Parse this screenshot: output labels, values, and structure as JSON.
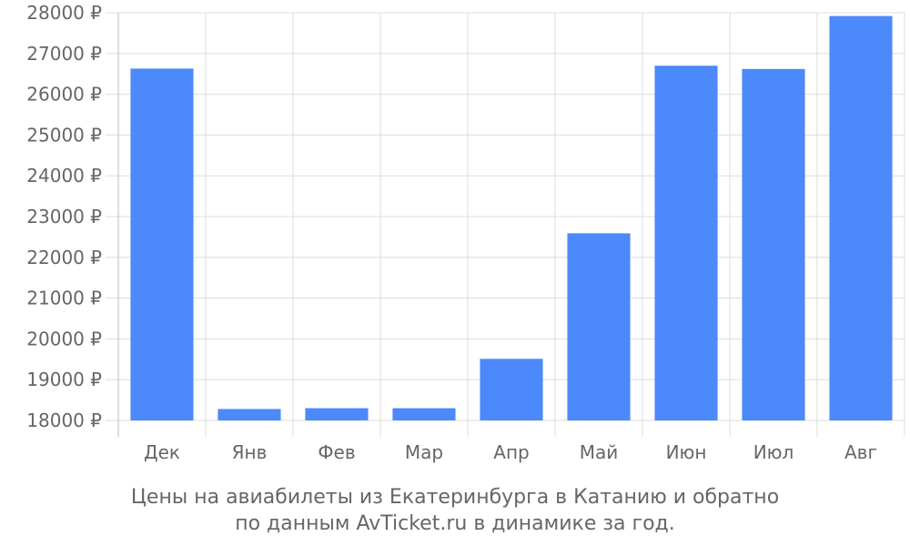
{
  "chart_data": {
    "type": "bar",
    "categories": [
      "Дек",
      "Янв",
      "Фев",
      "Мар",
      "Апр",
      "Май",
      "Июн",
      "Июл",
      "Авг"
    ],
    "values": [
      26630,
      18280,
      18300,
      18300,
      19510,
      22590,
      26700,
      26620,
      27920
    ],
    "ylim": [
      18000,
      28000
    ],
    "yticks": [
      18000,
      19000,
      20000,
      21000,
      22000,
      23000,
      24000,
      25000,
      26000,
      27000,
      28000
    ],
    "currency_suffix": " ₽",
    "bar_color": "#4c89fa",
    "grid": true,
    "title": "",
    "xlabel": "",
    "ylabel": ""
  },
  "caption": {
    "line1": "Цены на авиабилеты из Екатеринбурга в Катанию и обратно",
    "line2": "по данным AvTicket.ru в динамике за год."
  }
}
